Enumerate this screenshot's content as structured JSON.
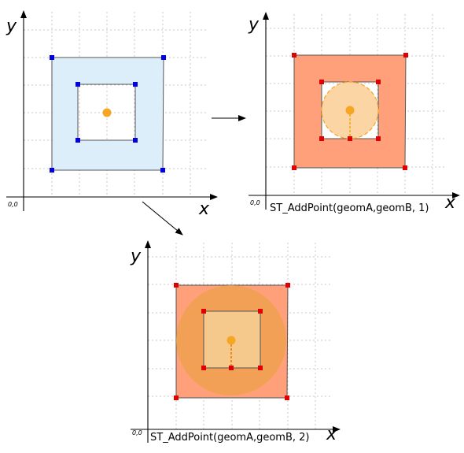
{
  "colors": {
    "blue_fill": "#ddeefb",
    "blue_vertex": "#0000e0",
    "red_fill": "#ffa07a",
    "red_vertex": "#e00000",
    "orange_point": "#f5a623",
    "circle_fill_1": "#fbd29a",
    "circle_fill_2": "#f0a050",
    "hole_fill_2": "#f5c88c"
  },
  "panels": {
    "input": {
      "origin_label": "0,0",
      "x_label": "x",
      "y_label": "y"
    },
    "result1": {
      "origin_label": "0,0",
      "x_label": "x",
      "y_label": "y",
      "caption": "ST_AddPoint(geomA,geomB, 1)"
    },
    "result2": {
      "origin_label": "0,0",
      "x_label": "x",
      "y_label": "y",
      "caption": "ST_AddPoint(geomA,geomB, 2)"
    }
  }
}
